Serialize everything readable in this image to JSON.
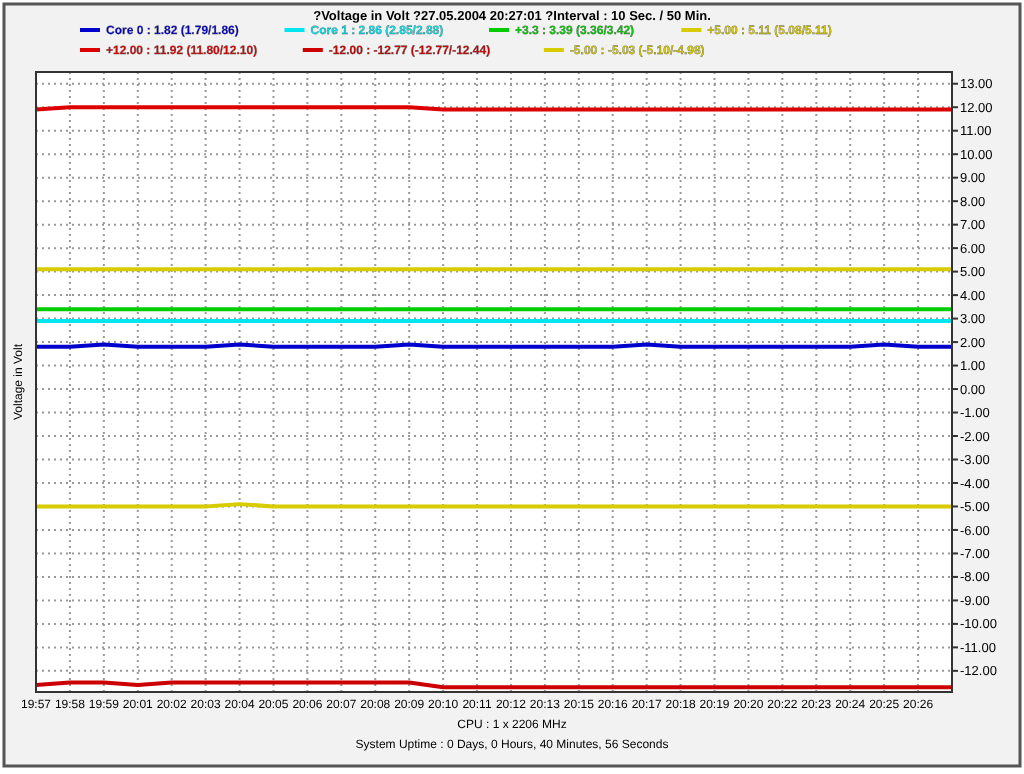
{
  "chart_data": {
    "type": "line",
    "title": "?Voltage in Volt ?27.05.2004 20:27:01 ?Interval : 10 Sec. / 50 Min.",
    "ylabel": "Voltage in Volt",
    "categories": [
      "19:57",
      "19:58",
      "19:59",
      "20:01",
      "20:02",
      "20:03",
      "20:04",
      "20:05",
      "20:06",
      "20:07",
      "20:08",
      "20:09",
      "20:10",
      "20:11",
      "20:12",
      "20:13",
      "20:15",
      "20:16",
      "20:17",
      "20:18",
      "20:19",
      "20:20",
      "20:22",
      "20:23",
      "20:24",
      "20:25",
      "20:26",
      null
    ],
    "series": [
      {
        "name": "Core 0 : 1.82 (1.79/1.86)",
        "color": "#0000cc",
        "values": [
          1.8,
          1.8,
          1.9,
          1.8,
          1.8,
          1.8,
          1.9,
          1.8,
          1.8,
          1.8,
          1.8,
          1.9,
          1.8,
          1.8,
          1.8,
          1.8,
          1.8,
          1.8,
          1.9,
          1.8,
          1.8,
          1.8,
          1.8,
          1.8,
          1.8,
          1.9,
          1.8,
          1.8
        ]
      },
      {
        "name": "Core 1 : 2.86 (2.85/2.88)",
        "color": "#00e5ee",
        "values": [
          2.9,
          2.9,
          2.9,
          2.9,
          2.9,
          2.9,
          2.9,
          2.9,
          2.9,
          2.9,
          2.9,
          2.9,
          2.9,
          2.9,
          2.9,
          2.9,
          2.9,
          2.9,
          2.9,
          2.9,
          2.9,
          2.9,
          2.9,
          2.9,
          2.9,
          2.9,
          2.9,
          2.9
        ]
      },
      {
        "name": "+3.3 : 3.39 (3.36/3.42)",
        "color": "#00cc00",
        "values": [
          3.4,
          3.4,
          3.4,
          3.4,
          3.4,
          3.4,
          3.4,
          3.4,
          3.4,
          3.4,
          3.4,
          3.4,
          3.4,
          3.4,
          3.4,
          3.4,
          3.4,
          3.4,
          3.4,
          3.4,
          3.4,
          3.4,
          3.4,
          3.4,
          3.4,
          3.4,
          3.4,
          3.4
        ]
      },
      {
        "name": "+5.00 : 5.11 (5.08/5.11)",
        "color": "#d8cc00",
        "values": [
          5.1,
          5.1,
          5.1,
          5.1,
          5.1,
          5.1,
          5.1,
          5.1,
          5.1,
          5.1,
          5.1,
          5.1,
          5.1,
          5.1,
          5.1,
          5.1,
          5.1,
          5.1,
          5.1,
          5.1,
          5.1,
          5.1,
          5.1,
          5.1,
          5.1,
          5.1,
          5.1,
          5.1
        ]
      },
      {
        "name": "+12.00 : 11.92 (11.80/12.10)",
        "color": "#dd0000",
        "values": [
          11.9,
          12.0,
          12.0,
          12.0,
          12.0,
          12.0,
          12.0,
          12.0,
          12.0,
          12.0,
          12.0,
          12.0,
          11.9,
          11.9,
          11.9,
          11.9,
          11.9,
          11.9,
          11.9,
          11.9,
          11.9,
          11.9,
          11.9,
          11.9,
          11.9,
          11.9,
          11.9,
          11.9
        ]
      },
      {
        "name": "-12.00 : -12.77 (-12.77/-12.44)",
        "color": "#cc0000",
        "values": [
          -12.6,
          -12.5,
          -12.5,
          -12.6,
          -12.5,
          -12.5,
          -12.5,
          -12.5,
          -12.5,
          -12.5,
          -12.5,
          -12.5,
          -12.7,
          -12.7,
          -12.7,
          -12.7,
          -12.7,
          -12.7,
          -12.7,
          -12.7,
          -12.7,
          -12.7,
          -12.7,
          -12.7,
          -12.7,
          -12.7,
          -12.7,
          -12.7
        ]
      },
      {
        "name": "-5.00 : -5.03 (-5.10/-4.98)",
        "color": "#d8cc00",
        "values": [
          -5.0,
          -5.0,
          -5.0,
          -5.0,
          -5.0,
          -5.0,
          -4.9,
          -5.0,
          -5.0,
          -5.0,
          -5.0,
          -5.0,
          -5.0,
          -5.0,
          -5.0,
          -5.0,
          -5.0,
          -5.0,
          -5.0,
          -5.0,
          -5.0,
          -5.0,
          -5.0,
          -5.0,
          -5.0,
          -5.0,
          -5.0,
          -5.0
        ]
      }
    ],
    "ylim": [
      -12.9,
      13.5
    ],
    "yticks": [
      {
        "value": -12,
        "label": "-12.00"
      },
      {
        "value": -11,
        "label": "-11.00"
      },
      {
        "value": -10,
        "label": "-10.00"
      },
      {
        "value": -9,
        "label": "-9.00"
      },
      {
        "value": -8,
        "label": "-8.00"
      },
      {
        "value": -7,
        "label": "-7.00"
      },
      {
        "value": -6,
        "label": "-6.00"
      },
      {
        "value": -5,
        "label": "-5.00"
      },
      {
        "value": -4,
        "label": "-4.00"
      },
      {
        "value": -3,
        "label": "-3.00"
      },
      {
        "value": -2,
        "label": "-2.00"
      },
      {
        "value": -1,
        "label": "-1.00"
      },
      {
        "value": 0,
        "label": "0.00"
      },
      {
        "value": 1,
        "label": "1.00"
      },
      {
        "value": 2,
        "label": "2.00"
      },
      {
        "value": 3,
        "label": "3.00"
      },
      {
        "value": 4,
        "label": "4.00"
      },
      {
        "value": 5,
        "label": "5.00"
      },
      {
        "value": 6,
        "label": "6.00"
      },
      {
        "value": 7,
        "label": "7.00"
      },
      {
        "value": 8,
        "label": "8.00"
      },
      {
        "value": 9,
        "label": "9.00"
      },
      {
        "value": 10,
        "label": "10.00"
      },
      {
        "value": 11,
        "label": "11.00"
      },
      {
        "value": 12,
        "label": "12.00"
      },
      {
        "value": 13,
        "label": "13.00"
      }
    ],
    "grid": true,
    "legend": "top",
    "marker": "none",
    "line_style": "solid",
    "annotations": [
      "CPU : 1 x 2206 MHz",
      "System Uptime : 0 Days, 0 Hours, 40 Minutes, 56 Seconds"
    ]
  }
}
